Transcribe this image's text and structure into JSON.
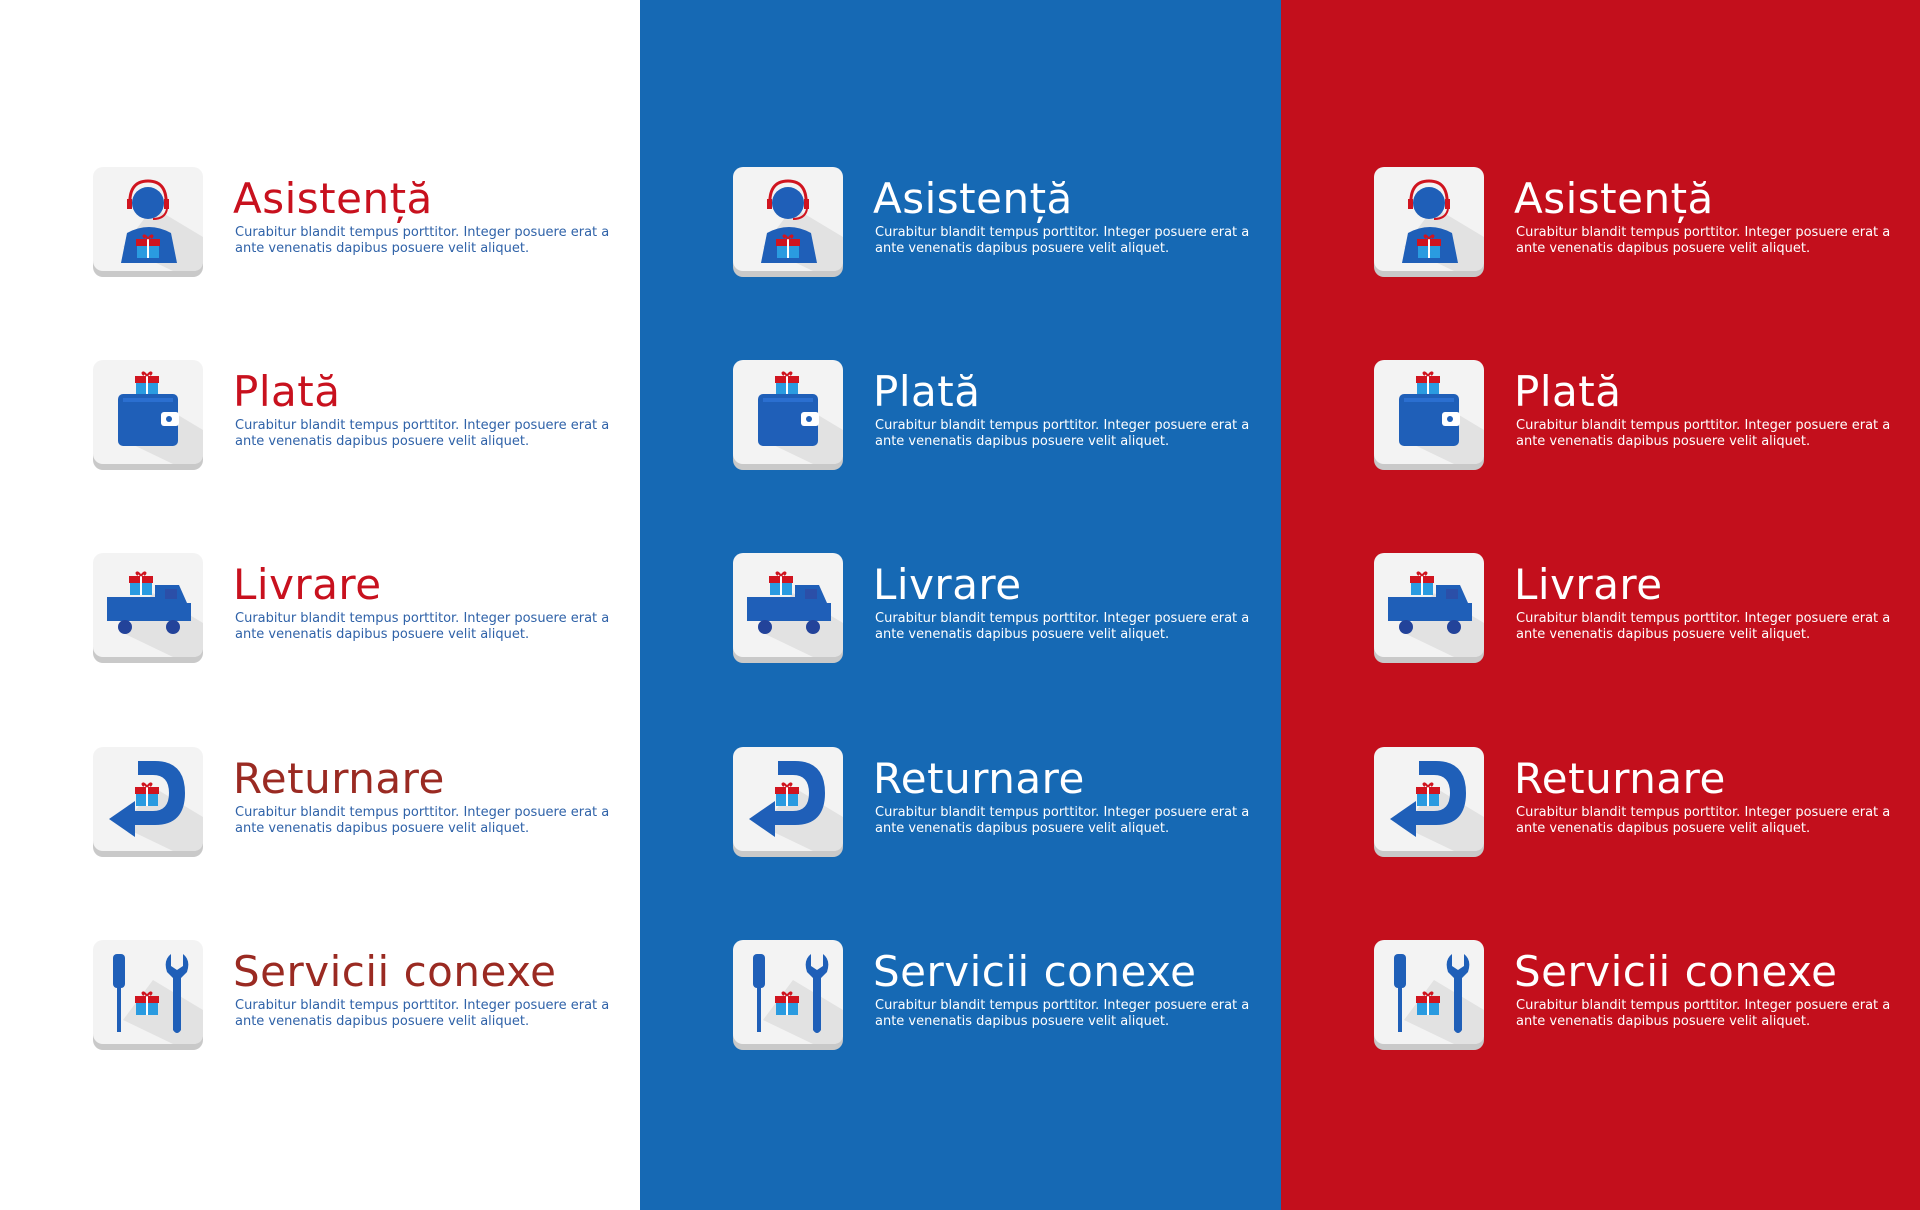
{
  "colors": {
    "white_panel": "#ffffff",
    "blue_panel": "#1669b4",
    "red_panel": "#c30f1c",
    "title_red": "#c8111e",
    "desc_blue": "#2f62a8"
  },
  "panels": [
    {
      "name": "white",
      "items": [
        {
          "icon": "support-agent-icon",
          "title": "Asistență",
          "desc": "Curabitur blandit tempus porttitor. Integer posuere erat a ante venenatis dapibus posuere velit aliquet."
        },
        {
          "icon": "wallet-gift-icon",
          "title": "Plată",
          "desc": "Curabitur blandit tempus porttitor. Integer posuere erat a ante venenatis dapibus posuere velit aliquet."
        },
        {
          "icon": "delivery-truck-icon",
          "title": "Livrare",
          "desc": "Curabitur blandit tempus porttitor. Integer posuere erat a ante venenatis dapibus posuere velit aliquet."
        },
        {
          "icon": "return-arrow-icon",
          "title": "Returnare",
          "desc": "Curabitur blandit tempus porttitor. Integer posuere erat a ante venenatis dapibus posuere velit aliquet."
        },
        {
          "icon": "tools-icon",
          "title": "Servicii conexe",
          "desc": "Curabitur blandit tempus porttitor. Integer posuere erat a ante venenatis dapibus posuere velit aliquet."
        }
      ]
    },
    {
      "name": "blue",
      "items": [
        {
          "icon": "support-agent-icon",
          "title": "Asistență",
          "desc": "Curabitur blandit tempus porttitor. Integer posuere erat a ante venenatis dapibus posuere velit aliquet."
        },
        {
          "icon": "wallet-gift-icon",
          "title": "Plată",
          "desc": "Curabitur blandit tempus porttitor. Integer posuere erat a ante venenatis dapibus posuere velit aliquet."
        },
        {
          "icon": "delivery-truck-icon",
          "title": "Livrare",
          "desc": "Curabitur blandit tempus porttitor. Integer posuere erat a ante venenatis dapibus posuere velit aliquet."
        },
        {
          "icon": "return-arrow-icon",
          "title": "Returnare",
          "desc": "Curabitur blandit tempus porttitor. Integer posuere erat a ante venenatis dapibus posuere velit aliquet."
        },
        {
          "icon": "tools-icon",
          "title": "Servicii conexe",
          "desc": "Curabitur blandit tempus porttitor. Integer posuere erat a ante venenatis dapibus posuere velit aliquet."
        }
      ]
    },
    {
      "name": "red",
      "items": [
        {
          "icon": "support-agent-icon",
          "title": "Asistență",
          "desc": "Curabitur blandit tempus porttitor. Integer posuere erat a ante venenatis dapibus posuere velit aliquet."
        },
        {
          "icon": "wallet-gift-icon",
          "title": "Plată",
          "desc": "Curabitur blandit tempus porttitor. Integer posuere erat a ante venenatis dapibus posuere velit aliquet."
        },
        {
          "icon": "delivery-truck-icon",
          "title": "Livrare",
          "desc": "Curabitur blandit tempus porttitor. Integer posuere erat a ante venenatis dapibus posuere velit aliquet."
        },
        {
          "icon": "return-arrow-icon",
          "title": "Returnare",
          "desc": "Curabitur blandit tempus porttitor. Integer posuere erat a ante venenatis dapibus posuere velit aliquet."
        },
        {
          "icon": "tools-icon",
          "title": "Servicii conexe",
          "desc": "Curabitur blandit tempus porttitor. Integer posuere erat a ante venenatis dapibus posuere velit aliquet."
        }
      ]
    }
  ]
}
